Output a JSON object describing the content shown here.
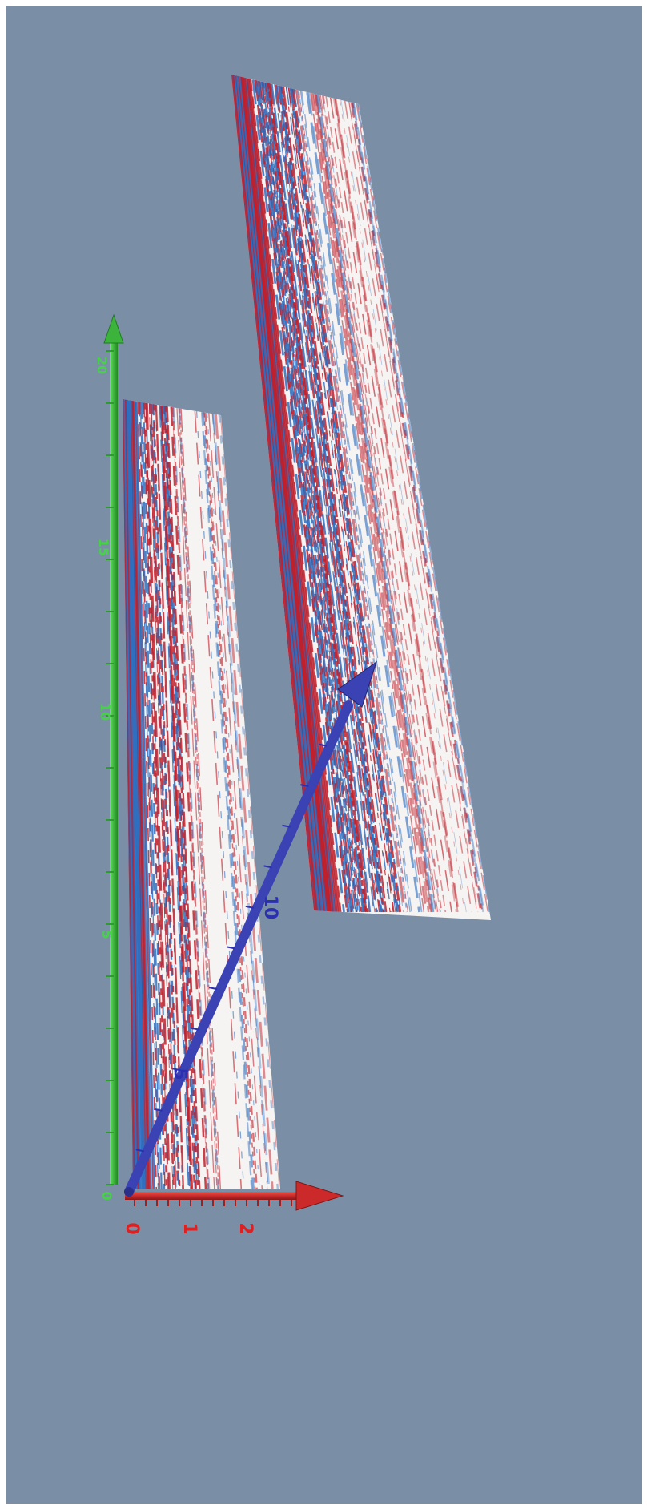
{
  "colors": {
    "background": "#7a8fa6",
    "x_axis": "#cc2a2a",
    "y_axis": "#3cb43c",
    "z_axis": "#3a42b4",
    "seismic_positive": "#c0202c",
    "seismic_negative": "#2f6fc0",
    "panel_base": "#f6f4f2"
  },
  "axes": {
    "x": {
      "ticks": [
        "0",
        "1",
        "2"
      ]
    },
    "y": {
      "ticks": [
        "0",
        "5",
        "10",
        "15",
        "20"
      ]
    },
    "z": {
      "ticks": [
        "5",
        "10"
      ]
    }
  }
}
